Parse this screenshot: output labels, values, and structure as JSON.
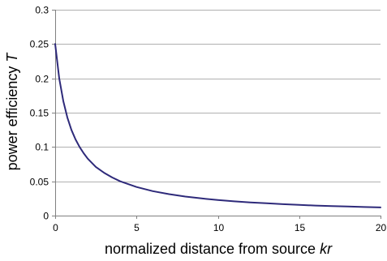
{
  "chart_data": {
    "type": "line",
    "title": "",
    "xlabel": "normalized distance from source ",
    "xlabel_italic": "kr",
    "ylabel": "power efficiency ",
    "ylabel_italic": "T",
    "xlim": [
      0,
      20
    ],
    "ylim": [
      0,
      0.3
    ],
    "xticks": [
      "0",
      "5",
      "10",
      "15",
      "20"
    ],
    "yticks": [
      "0",
      "0.05",
      "0.1",
      "0.15",
      "0.2",
      "0.25",
      "0.3"
    ],
    "grid": "horizontal",
    "legend": "none",
    "series": [
      {
        "color": "#2e2a7a",
        "x": [
          0,
          0.25,
          0.5,
          0.75,
          1,
          1.25,
          1.5,
          1.75,
          2,
          2.5,
          3,
          3.5,
          4,
          5,
          6,
          7,
          8,
          9,
          10,
          11,
          12,
          13,
          14,
          15,
          16,
          17,
          18,
          19,
          20
        ],
        "y": [
          0.25,
          0.2,
          0.167,
          0.143,
          0.125,
          0.111,
          0.1,
          0.091,
          0.083,
          0.071,
          0.0625,
          0.0556,
          0.05,
          0.0417,
          0.0357,
          0.0313,
          0.0278,
          0.025,
          0.0227,
          0.0208,
          0.0192,
          0.0179,
          0.0167,
          0.0156,
          0.0147,
          0.0139,
          0.0132,
          0.0125,
          0.0119
        ]
      }
    ]
  }
}
